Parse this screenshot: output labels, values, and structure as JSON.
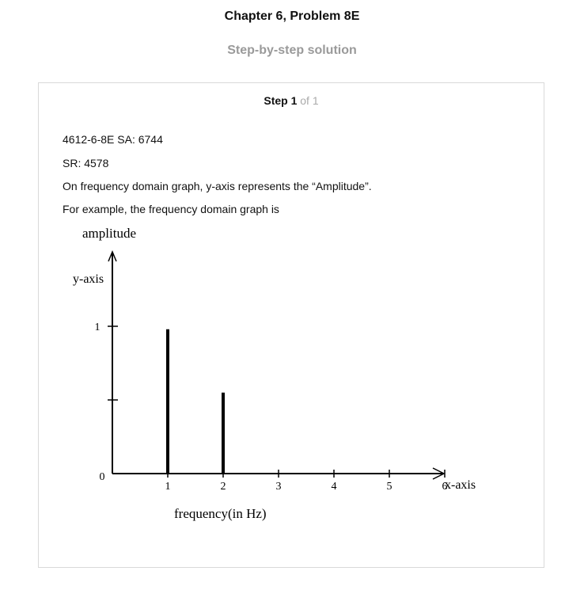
{
  "header": {
    "chapter_title": "Chapter 6, Problem 8E",
    "subtitle": "Step-by-step solution"
  },
  "step": {
    "label": "Step 1",
    "of_text": "of 1"
  },
  "paragraphs": [
    "4612-6-8E SA: 6744",
    "SR: 4578",
    "On frequency domain graph, y-axis represents the “Amplitude”.",
    "For example, the frequency domain graph is"
  ],
  "chart_data": {
    "type": "bar",
    "title": "",
    "y_title": "amplitude",
    "ylabel": "y-axis",
    "xlabel": "x-axis",
    "x_caption": "frequency(in Hz)",
    "xlim": [
      0,
      6.5
    ],
    "ylim": [
      0,
      1
    ],
    "x_ticks": [
      1,
      2,
      3,
      4,
      5,
      6
    ],
    "x_tick_labels": [
      "1",
      "2",
      "3",
      "4",
      "5",
      "6"
    ],
    "y_ticks": [
      0,
      0.5,
      1
    ],
    "y_tick_labels": [
      "0",
      "",
      "1"
    ],
    "x": [
      1,
      2
    ],
    "values": [
      0.98,
      0.55
    ],
    "grid": false
  }
}
